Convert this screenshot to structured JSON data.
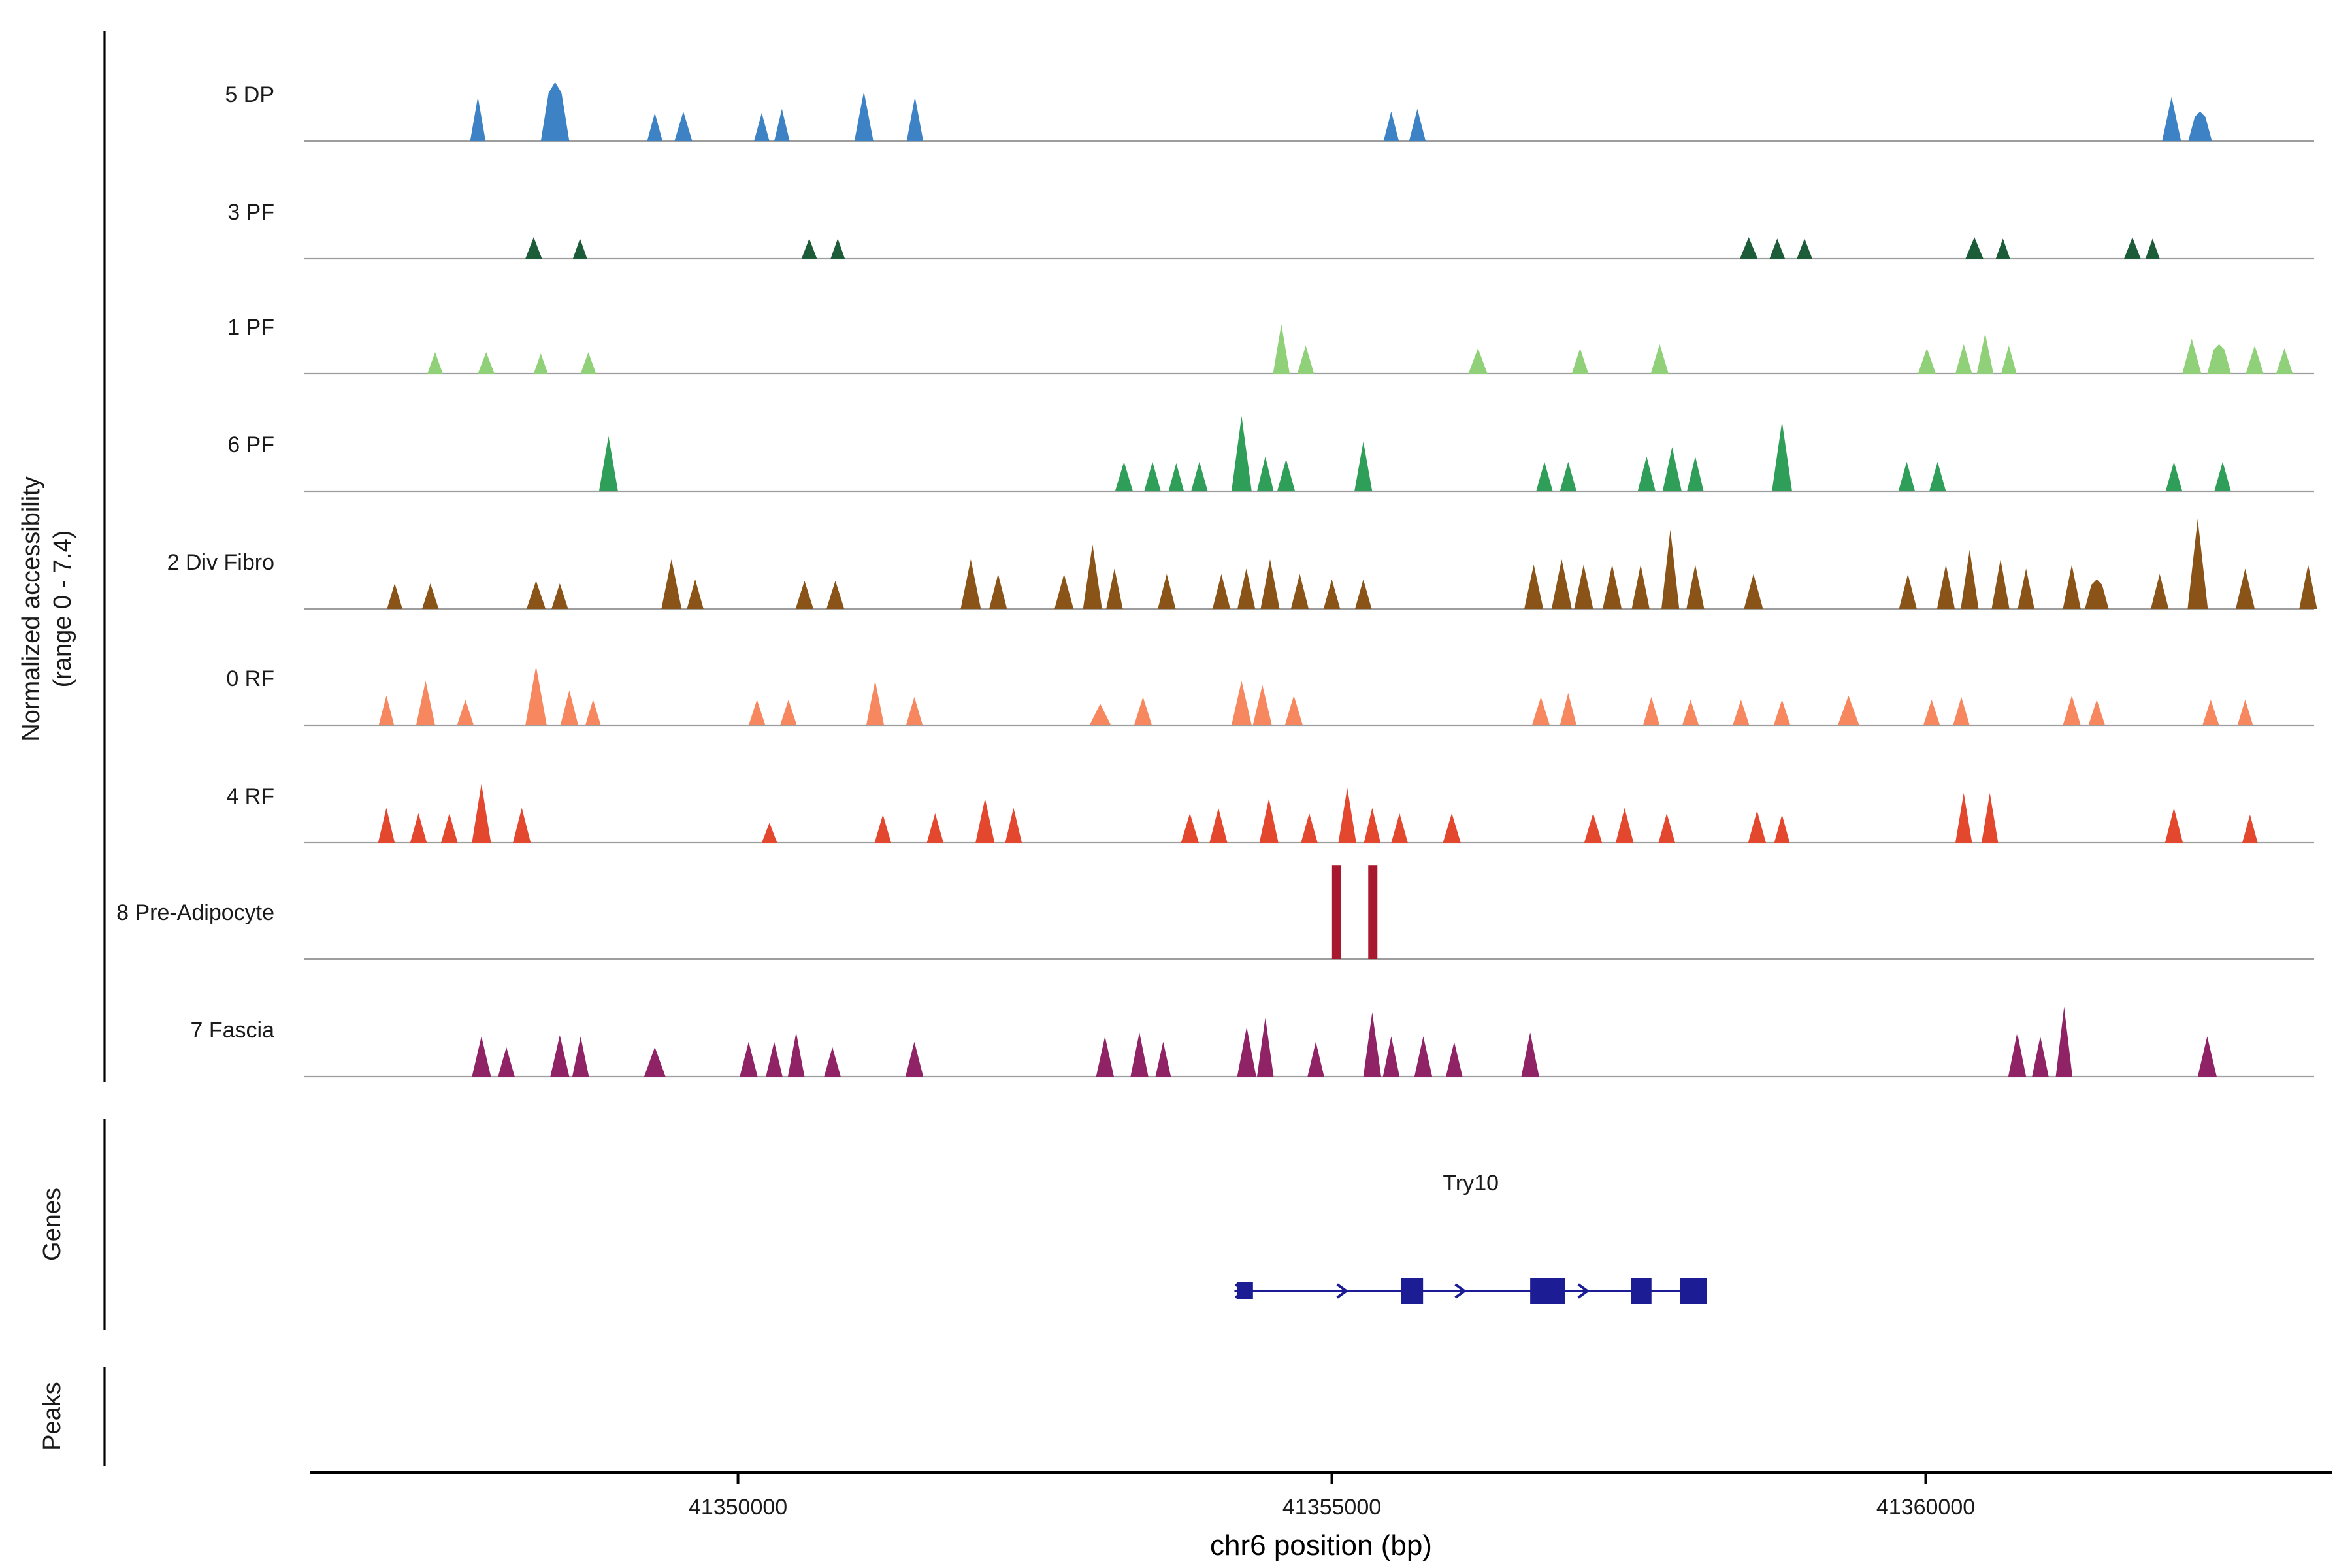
{
  "figure": {
    "y_axis_label_line1": "Normalized accessibility",
    "y_axis_label_line2": "(range 0 - 7.4)",
    "genes_section_label": "Genes",
    "peaks_section_label": "Peaks",
    "x_axis_label": "chr6 position (bp)"
  },
  "chart_data": {
    "type": "area",
    "subtype": "genome-coverage-tracks",
    "x_axis": {
      "label": "chr6 position (bp)",
      "chromosome": "chr6",
      "start": 41346350,
      "end": 41363270,
      "ticks": [
        41350000,
        41355000,
        41360000
      ],
      "tick_labels": [
        "41350000",
        "41355000",
        "41360000"
      ]
    },
    "y_axis": {
      "label": "Normalized accessibility",
      "range_note": "(range 0 - 7.4)",
      "min": 0,
      "max": 7.4
    },
    "tracks": [
      {
        "name": "5 DP",
        "color": "#3d82c4",
        "shape": "mound",
        "peaks": [
          [
            41347810,
            130,
            3.3
          ],
          [
            41348460,
            240,
            4.4
          ],
          [
            41349300,
            130,
            2.1
          ],
          [
            41349540,
            150,
            2.2
          ],
          [
            41350200,
            130,
            2.1
          ],
          [
            41350370,
            130,
            2.4
          ],
          [
            41351060,
            160,
            3.7
          ],
          [
            41351490,
            140,
            3.3
          ],
          [
            41355500,
            130,
            2.2
          ],
          [
            41355720,
            140,
            2.4
          ],
          [
            41362070,
            160,
            3.3
          ],
          [
            41362310,
            200,
            2.2
          ]
        ]
      },
      {
        "name": "3 PF",
        "color": "#1d5c39",
        "shape": "mound",
        "peaks": [
          [
            41348280,
            140,
            1.6
          ],
          [
            41348670,
            120,
            1.5
          ],
          [
            41350600,
            130,
            1.5
          ],
          [
            41350840,
            120,
            1.5
          ],
          [
            41358510,
            150,
            1.6
          ],
          [
            41358750,
            130,
            1.5
          ],
          [
            41358980,
            130,
            1.5
          ],
          [
            41360410,
            150,
            1.6
          ],
          [
            41360650,
            120,
            1.5
          ],
          [
            41361740,
            140,
            1.6
          ],
          [
            41361910,
            120,
            1.5
          ]
        ]
      },
      {
        "name": "1 PF",
        "color": "#8fd078",
        "shape": "mound",
        "peaks": [
          [
            41347450,
            130,
            1.6
          ],
          [
            41347880,
            140,
            1.6
          ],
          [
            41348340,
            120,
            1.5
          ],
          [
            41348740,
            130,
            1.6
          ],
          [
            41354575,
            140,
            3.7
          ],
          [
            41354780,
            140,
            2.1
          ],
          [
            41356230,
            160,
            1.9
          ],
          [
            41357090,
            140,
            1.9
          ],
          [
            41357760,
            150,
            2.2
          ],
          [
            41360010,
            150,
            1.9
          ],
          [
            41360320,
            140,
            2.2
          ],
          [
            41360500,
            140,
            3.0
          ],
          [
            41360700,
            130,
            2.1
          ],
          [
            41362240,
            160,
            2.6
          ],
          [
            41362470,
            200,
            2.2
          ],
          [
            41362770,
            150,
            2.1
          ],
          [
            41363020,
            140,
            1.9
          ]
        ]
      },
      {
        "name": "6 PF",
        "color": "#2f9e59",
        "shape": "mound",
        "peaks": [
          [
            41348910,
            160,
            4.1
          ],
          [
            41353250,
            150,
            2.2
          ],
          [
            41353490,
            140,
            2.2
          ],
          [
            41353690,
            130,
            2.1
          ],
          [
            41353885,
            140,
            2.2
          ],
          [
            41354240,
            170,
            5.6
          ],
          [
            41354440,
            140,
            2.6
          ],
          [
            41354615,
            150,
            2.4
          ],
          [
            41355265,
            150,
            3.7
          ],
          [
            41356790,
            140,
            2.2
          ],
          [
            41356990,
            140,
            2.2
          ],
          [
            41357650,
            150,
            2.6
          ],
          [
            41357865,
            160,
            3.3
          ],
          [
            41358060,
            140,
            2.6
          ],
          [
            41358790,
            170,
            5.2
          ],
          [
            41359840,
            140,
            2.2
          ],
          [
            41360100,
            140,
            2.2
          ],
          [
            41362090,
            140,
            2.2
          ],
          [
            41362500,
            140,
            2.2
          ]
        ]
      },
      {
        "name": "2 Div Fibro",
        "color": "#8a5419",
        "shape": "mound",
        "peaks": [
          [
            41347110,
            130,
            1.9
          ],
          [
            41347410,
            140,
            1.9
          ],
          [
            41348300,
            160,
            2.1
          ],
          [
            41348500,
            140,
            1.9
          ],
          [
            41349440,
            170,
            3.7
          ],
          [
            41349640,
            140,
            2.2
          ],
          [
            41350560,
            150,
            2.1
          ],
          [
            41350820,
            150,
            2.1
          ],
          [
            41351960,
            170,
            3.7
          ],
          [
            41352190,
            150,
            2.6
          ],
          [
            41352745,
            160,
            2.6
          ],
          [
            41352985,
            160,
            4.8
          ],
          [
            41353170,
            140,
            3.0
          ],
          [
            41353610,
            150,
            2.6
          ],
          [
            41354070,
            150,
            2.6
          ],
          [
            41354280,
            150,
            3.0
          ],
          [
            41354480,
            160,
            3.7
          ],
          [
            41354730,
            150,
            2.6
          ],
          [
            41355000,
            140,
            2.2
          ],
          [
            41355265,
            140,
            2.2
          ],
          [
            41356700,
            160,
            3.3
          ],
          [
            41356935,
            170,
            3.7
          ],
          [
            41357120,
            160,
            3.3
          ],
          [
            41357360,
            160,
            3.3
          ],
          [
            41357600,
            150,
            3.3
          ],
          [
            41357850,
            150,
            5.9
          ],
          [
            41358060,
            150,
            3.3
          ],
          [
            41358550,
            160,
            2.6
          ],
          [
            41359850,
            150,
            2.6
          ],
          [
            41360170,
            150,
            3.3
          ],
          [
            41360370,
            150,
            4.4
          ],
          [
            41360630,
            150,
            3.7
          ],
          [
            41360845,
            140,
            3.0
          ],
          [
            41361230,
            150,
            3.3
          ],
          [
            41361440,
            200,
            2.2
          ],
          [
            41361970,
            150,
            2.6
          ],
          [
            41362290,
            170,
            6.7
          ],
          [
            41362690,
            160,
            3.0
          ],
          [
            41363220,
            150,
            3.3
          ]
        ]
      },
      {
        "name": "0 RF",
        "color": "#f6875f",
        "shape": "mound",
        "peaks": [
          [
            41347040,
            130,
            2.2
          ],
          [
            41347370,
            160,
            3.3
          ],
          [
            41347705,
            140,
            1.9
          ],
          [
            41348300,
            180,
            4.4
          ],
          [
            41348580,
            150,
            2.6
          ],
          [
            41348780,
            130,
            1.9
          ],
          [
            41350160,
            140,
            1.9
          ],
          [
            41350425,
            140,
            1.9
          ],
          [
            41351155,
            150,
            3.3
          ],
          [
            41351485,
            140,
            2.1
          ],
          [
            41353050,
            180,
            1.6
          ],
          [
            41353410,
            150,
            2.1
          ],
          [
            41354240,
            170,
            3.3
          ],
          [
            41354415,
            160,
            3.0
          ],
          [
            41354680,
            150,
            2.2
          ],
          [
            41356760,
            150,
            2.1
          ],
          [
            41356990,
            140,
            2.4
          ],
          [
            41357690,
            140,
            2.1
          ],
          [
            41358020,
            140,
            1.9
          ],
          [
            41358445,
            140,
            1.9
          ],
          [
            41358790,
            140,
            1.9
          ],
          [
            41359350,
            180,
            2.2
          ],
          [
            41360050,
            140,
            1.9
          ],
          [
            41360300,
            140,
            2.1
          ],
          [
            41361230,
            150,
            2.2
          ],
          [
            41361440,
            140,
            1.9
          ],
          [
            41362400,
            140,
            1.9
          ],
          [
            41362690,
            130,
            1.9
          ]
        ]
      },
      {
        "name": "4 RF",
        "color": "#e3472e",
        "shape": "mound",
        "peaks": [
          [
            41347040,
            140,
            2.6
          ],
          [
            41347310,
            140,
            2.2
          ],
          [
            41347570,
            140,
            2.2
          ],
          [
            41347840,
            160,
            4.4
          ],
          [
            41348180,
            150,
            2.6
          ],
          [
            41350265,
            130,
            1.5
          ],
          [
            41351220,
            140,
            2.1
          ],
          [
            41351660,
            140,
            2.2
          ],
          [
            41352080,
            160,
            3.3
          ],
          [
            41352320,
            140,
            2.6
          ],
          [
            41353805,
            150,
            2.2
          ],
          [
            41354045,
            150,
            2.6
          ],
          [
            41354470,
            160,
            3.3
          ],
          [
            41354810,
            140,
            2.2
          ],
          [
            41355130,
            150,
            4.1
          ],
          [
            41355340,
            140,
            2.6
          ],
          [
            41355570,
            140,
            2.2
          ],
          [
            41356010,
            150,
            2.2
          ],
          [
            41357200,
            150,
            2.2
          ],
          [
            41357465,
            150,
            2.6
          ],
          [
            41357820,
            140,
            2.2
          ],
          [
            41358580,
            150,
            2.4
          ],
          [
            41358790,
            130,
            2.1
          ],
          [
            41360320,
            140,
            3.7
          ],
          [
            41360540,
            140,
            3.7
          ],
          [
            41362090,
            150,
            2.6
          ],
          [
            41362730,
            130,
            2.1
          ]
        ]
      },
      {
        "name": "8 Pre-Adipocyte",
        "color": "#a8182e",
        "shape": "bar",
        "peaks": [
          [
            41355040,
            140,
            7.0
          ],
          [
            41355345,
            140,
            7.0
          ]
        ]
      },
      {
        "name": "7 Fascia",
        "color": "#8f2365",
        "shape": "mound",
        "peaks": [
          [
            41347840,
            160,
            3.0
          ],
          [
            41348050,
            140,
            2.2
          ],
          [
            41348500,
            160,
            3.1
          ],
          [
            41348675,
            140,
            3.0
          ],
          [
            41349300,
            180,
            2.2
          ],
          [
            41350090,
            150,
            2.6
          ],
          [
            41350305,
            140,
            2.6
          ],
          [
            41350490,
            140,
            3.3
          ],
          [
            41350795,
            140,
            2.2
          ],
          [
            41351485,
            150,
            2.6
          ],
          [
            41353090,
            150,
            3.0
          ],
          [
            41353380,
            150,
            3.3
          ],
          [
            41353580,
            130,
            2.6
          ],
          [
            41354283,
            160,
            3.7
          ],
          [
            41354440,
            140,
            4.4
          ],
          [
            41354865,
            140,
            2.6
          ],
          [
            41355340,
            150,
            4.8
          ],
          [
            41355500,
            140,
            3.0
          ],
          [
            41355770,
            150,
            3.0
          ],
          [
            41356030,
            140,
            2.6
          ],
          [
            41356670,
            150,
            3.3
          ],
          [
            41360770,
            150,
            3.3
          ],
          [
            41360965,
            140,
            3.0
          ],
          [
            41361165,
            140,
            5.2
          ],
          [
            41362370,
            160,
            3.0
          ]
        ]
      }
    ],
    "gene": {
      "name": "Try10",
      "color": "#1c1c94",
      "strand": "+",
      "start": 41354180,
      "end": 41358160,
      "exons": [
        [
          41354204,
          41354336
        ],
        [
          41355583,
          41355768
        ],
        [
          41356670,
          41356962
        ],
        [
          41357518,
          41357691
        ],
        [
          41357929,
          41358155
        ]
      ]
    },
    "peaks_track": {
      "label": "Peaks",
      "items": []
    }
  }
}
